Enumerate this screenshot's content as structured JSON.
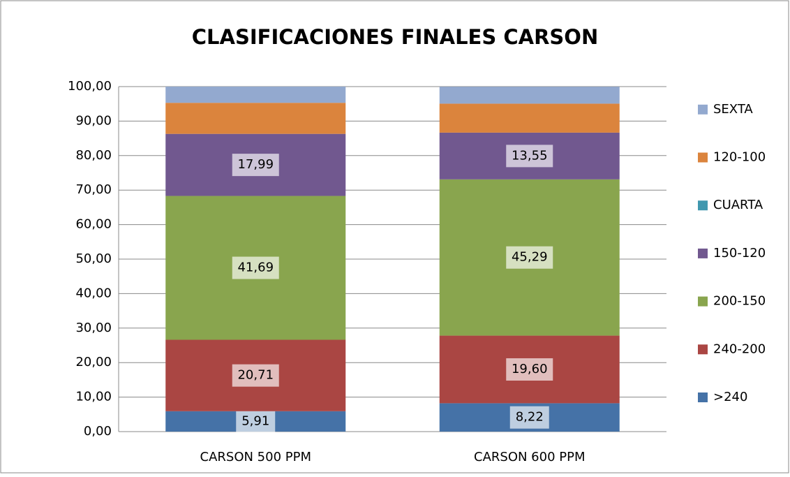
{
  "chart_data": {
    "type": "stacked_bar",
    "title": "CLASIFICACIONES FINALES CARSON",
    "categories": [
      "CARSON 500 PPM",
      "CARSON 600 PPM"
    ],
    "series": [
      {
        "name": ">240",
        "color": "#4572A7",
        "values": [
          5.91,
          8.22
        ],
        "value_labels": [
          "5,91",
          "8,22"
        ]
      },
      {
        "name": "240-200",
        "color": "#AA4643",
        "values": [
          20.71,
          19.6
        ],
        "value_labels": [
          "20,71",
          "19,60"
        ]
      },
      {
        "name": "200-150",
        "color": "#89A54E",
        "values": [
          41.69,
          45.29
        ],
        "value_labels": [
          "41,69",
          "45,29"
        ]
      },
      {
        "name": "150-120",
        "color": "#71588F",
        "values": [
          17.99,
          13.55
        ],
        "value_labels": [
          "17,99",
          "13,55"
        ]
      },
      {
        "name": "CUARTA",
        "color": "#4198AF",
        "values": [
          0,
          0
        ]
      },
      {
        "name": "120-100",
        "color": "#DB843D",
        "values": [
          9.0,
          8.4
        ]
      },
      {
        "name": "SEXTA",
        "color": "#93A9CF",
        "values": [
          4.7,
          4.9
        ]
      }
    ],
    "ylim": [
      0,
      100
    ],
    "yticks": [
      {
        "value": 0,
        "label": "0,00"
      },
      {
        "value": 10,
        "label": "10,00"
      },
      {
        "value": 20,
        "label": "20,00"
      },
      {
        "value": 30,
        "label": "30,00"
      },
      {
        "value": 40,
        "label": "40,00"
      },
      {
        "value": 50,
        "label": "50,00"
      },
      {
        "value": 60,
        "label": "60,00"
      },
      {
        "value": 70,
        "label": "70,00"
      },
      {
        "value": 80,
        "label": "80,00"
      },
      {
        "value": 90,
        "label": "90,00"
      },
      {
        "value": 100,
        "label": "100,00"
      }
    ],
    "grid": true,
    "legend": "right"
  }
}
